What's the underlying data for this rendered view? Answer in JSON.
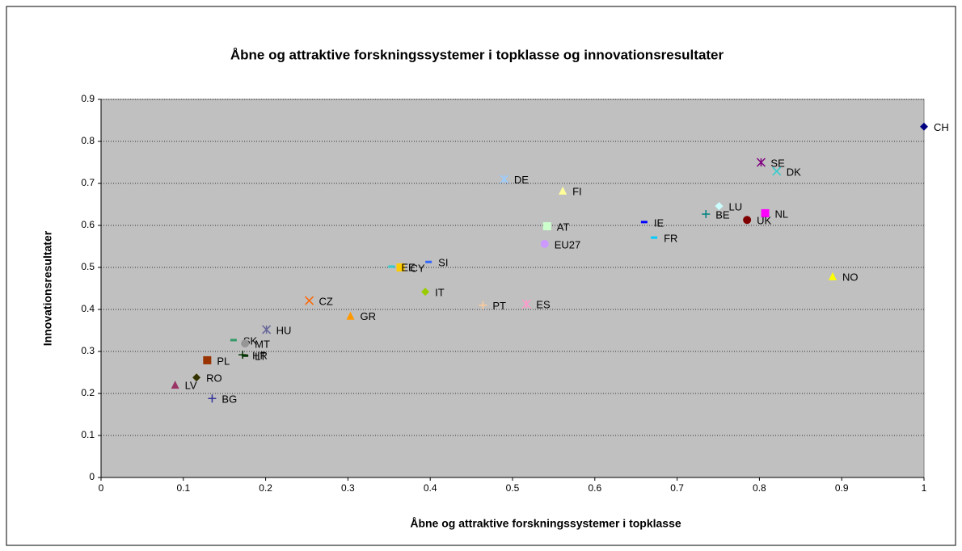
{
  "chart_data": {
    "type": "scatter",
    "title": "Åbne og attraktive forskningssystemer i topklasse og innovationsresultater",
    "x_label": "Åbne og attraktive forskningssystemer i topklasse",
    "y_label": "Innovationsresultater",
    "xlim": [
      0,
      1
    ],
    "xticks": [
      0,
      0.1,
      0.2,
      0.3,
      0.4,
      0.5,
      0.6,
      0.7,
      0.8,
      0.9,
      1
    ],
    "ylim": [
      0,
      0.9
    ],
    "yticks": [
      0,
      0.1,
      0.2,
      0.3,
      0.4,
      0.5,
      0.6,
      0.7,
      0.8,
      0.9
    ],
    "grid": true,
    "series": [
      {
        "name": "CH",
        "color": "#000080",
        "marker": "diamond",
        "x": 1.0,
        "y": 0.835
      },
      {
        "name": "SE",
        "color": "#800080",
        "marker": "star",
        "x": 0.802,
        "y": 0.75
      },
      {
        "name": "DK",
        "color": "#33cccc",
        "marker": "x",
        "x": 0.821,
        "y": 0.729
      },
      {
        "name": "DE",
        "color": "#99ccff",
        "marker": "star",
        "x": 0.49,
        "y": 0.71
      },
      {
        "name": "FI",
        "color": "#ffff99",
        "marker": "triangle",
        "x": 0.561,
        "y": 0.683
      },
      {
        "name": "BE",
        "color": "#008080",
        "marker": "plus",
        "x": 0.735,
        "y": 0.627
      },
      {
        "name": "LU",
        "color": "#ccffff",
        "marker": "diamond",
        "x": 0.751,
        "y": 0.646
      },
      {
        "name": "AT",
        "color": "#ccffcc",
        "marker": "square",
        "x": 0.542,
        "y": 0.598
      },
      {
        "name": "NL",
        "color": "#ff00ff",
        "marker": "square",
        "x": 0.807,
        "y": 0.629
      },
      {
        "name": "IE",
        "color": "#0000ff",
        "marker": "dash",
        "x": 0.66,
        "y": 0.608
      },
      {
        "name": "UK",
        "color": "#800000",
        "marker": "circle",
        "x": 0.785,
        "y": 0.613
      },
      {
        "name": "FR",
        "color": "#00ccff",
        "marker": "dash",
        "x": 0.672,
        "y": 0.571
      },
      {
        "name": "EU27",
        "color": "#cc99ff",
        "marker": "circle",
        "x": 0.539,
        "y": 0.556
      },
      {
        "name": "NO",
        "color": "#ffff00",
        "marker": "triangle",
        "x": 0.889,
        "y": 0.479
      },
      {
        "name": "SI",
        "color": "#3366ff",
        "marker": "dash",
        "x": 0.398,
        "y": 0.513
      },
      {
        "name": "CY",
        "color": "#ffcc00",
        "marker": "square",
        "x": 0.364,
        "y": 0.5
      },
      {
        "name": "EE",
        "color": "#33cccc",
        "marker": "dash",
        "x": 0.353,
        "y": 0.502
      },
      {
        "name": "IT",
        "color": "#99cc00",
        "marker": "diamond",
        "x": 0.394,
        "y": 0.442
      },
      {
        "name": "CZ",
        "color": "#ff6600",
        "marker": "x",
        "x": 0.253,
        "y": 0.421
      },
      {
        "name": "PT",
        "color": "#ffcc99",
        "marker": "plus",
        "x": 0.464,
        "y": 0.41
      },
      {
        "name": "ES",
        "color": "#ff99cc",
        "marker": "star",
        "x": 0.517,
        "y": 0.413
      },
      {
        "name": "GR",
        "color": "#ff9900",
        "marker": "triangle",
        "x": 0.303,
        "y": 0.385
      },
      {
        "name": "HU",
        "color": "#666699",
        "marker": "star",
        "x": 0.201,
        "y": 0.352
      },
      {
        "name": "SK",
        "color": "#339966",
        "marker": "dash",
        "x": 0.161,
        "y": 0.327
      },
      {
        "name": "MT",
        "color": "#969696",
        "marker": "circle",
        "x": 0.175,
        "y": 0.319
      },
      {
        "name": "PL",
        "color": "#993300",
        "marker": "square",
        "x": 0.129,
        "y": 0.279
      },
      {
        "name": "HR",
        "color": "#003300",
        "marker": "plus",
        "x": 0.172,
        "y": 0.292
      },
      {
        "name": "LT",
        "color": "#003300",
        "marker": "dash",
        "x": 0.175,
        "y": 0.29
      },
      {
        "name": "LV",
        "color": "#993366",
        "marker": "triangle",
        "x": 0.09,
        "y": 0.221
      },
      {
        "name": "RO",
        "color": "#333300",
        "marker": "diamond",
        "x": 0.116,
        "y": 0.238
      },
      {
        "name": "BG",
        "color": "#333399",
        "marker": "plus",
        "x": 0.135,
        "y": 0.188
      }
    ]
  }
}
